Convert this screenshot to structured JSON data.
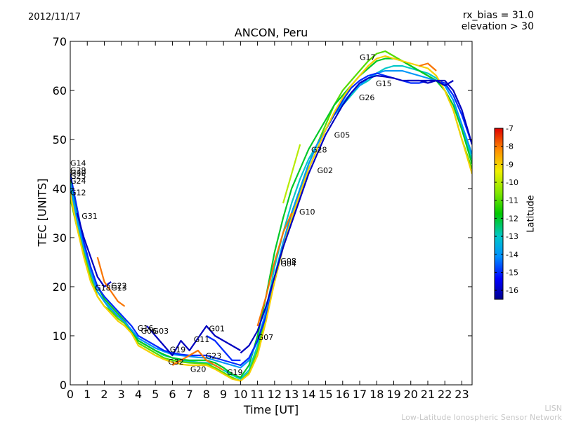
{
  "chart_data": {
    "type": "line",
    "title": "ANCON, Peru",
    "date": "2012/11/17",
    "annotation_lines": [
      "rx_bias = 31.0",
      "elevation > 30"
    ],
    "xlabel": "Time [UT]",
    "ylabel": "TEC [UNITS]",
    "xlim": [
      0,
      23.6
    ],
    "ylim": [
      0,
      70
    ],
    "xticks": [
      0,
      1,
      2,
      3,
      4,
      5,
      6,
      7,
      8,
      9,
      10,
      11,
      12,
      13,
      14,
      15,
      16,
      17,
      18,
      19,
      20,
      21,
      22,
      23
    ],
    "yticks": [
      0,
      10,
      20,
      30,
      40,
      50,
      60,
      70
    ],
    "colorbar": {
      "label": "Latitude",
      "range": [
        -16.5,
        -7
      ],
      "ticks": [
        -7,
        -8,
        -9,
        -10,
        -11,
        -12,
        -13,
        -14,
        -15,
        -16
      ]
    },
    "series": [
      {
        "name": "lat-13-a",
        "lat": -13,
        "x": [
          0,
          0.4,
          0.8,
          1.2,
          1.6,
          2.0,
          2.4,
          2.8,
          3.2,
          3.6,
          4.0,
          4.5,
          5.0,
          5.5,
          6.0,
          6.5,
          7.0,
          7.5,
          8.0,
          8.5,
          9.0,
          9.5,
          10.0,
          10.5,
          11.0,
          11.5,
          12.0,
          12.5,
          13.0,
          13.5,
          14.0,
          14.5,
          15.0,
          15.5,
          16.0,
          16.5,
          17.0,
          17.5,
          18.0,
          18.5,
          19.0,
          19.5,
          20.0,
          20.5,
          21.0,
          21.5,
          22.0,
          22.5,
          23.0,
          23.6
        ],
        "y": [
          40,
          33,
          28,
          23,
          19,
          17,
          15,
          14,
          13,
          11,
          9,
          8,
          7,
          6,
          5.5,
          5,
          4.8,
          4.6,
          4.5,
          4,
          3,
          2,
          1.2,
          3,
          8,
          15,
          24,
          31,
          37,
          42,
          46,
          49,
          52,
          55,
          57,
          59,
          61,
          62,
          63.5,
          64.5,
          65,
          65,
          64.5,
          64,
          63.5,
          62.5,
          61,
          58,
          53,
          46
        ]
      },
      {
        "name": "lat-11-a",
        "lat": -11,
        "x": [
          0,
          0.4,
          0.8,
          1.2,
          1.6,
          2.0,
          2.4,
          2.8,
          3.2,
          3.6,
          4.0,
          4.5,
          5.0,
          5.5,
          6.0,
          6.5,
          7.0,
          7.5,
          8.0,
          8.5,
          9.0,
          9.5,
          10.0,
          10.5,
          11.0,
          11.5,
          12.0,
          12.5,
          13.0,
          13.5,
          14.0,
          14.5,
          15.0,
          15.5,
          16.0,
          16.5,
          17.0,
          17.5,
          18.0,
          18.5,
          19.0,
          19.5,
          20.0,
          20.5,
          21.0,
          21.5,
          22.0,
          22.5,
          23.0,
          23.6
        ],
        "y": [
          38,
          32,
          27,
          22,
          18,
          16,
          15,
          13.5,
          12.5,
          10.5,
          8.5,
          7.5,
          6.5,
          5.5,
          5,
          4.7,
          4.5,
          4.4,
          4.3,
          3.5,
          2.5,
          1.5,
          0.8,
          2.5,
          7,
          14,
          22,
          29,
          35,
          40,
          45,
          49,
          53,
          57,
          60,
          62,
          64,
          66,
          67.5,
          68,
          67,
          66,
          65,
          64,
          63,
          62,
          60,
          56,
          50,
          44
        ]
      },
      {
        "name": "lat-12-a",
        "lat": -12,
        "x": [
          0,
          0.4,
          0.8,
          1.2,
          1.6,
          2.0,
          2.4,
          2.8,
          3.2,
          3.6,
          4.0,
          4.5,
          5.0,
          5.5,
          6.0,
          6.5,
          7.0,
          7.5,
          8.0,
          8.5,
          9.0,
          9.5,
          10.0,
          10.5,
          11.0,
          11.5,
          12.0,
          12.5,
          13.0,
          13.5,
          14.0,
          14.5,
          15.0,
          15.5,
          16.0,
          16.5,
          17.0,
          17.5,
          18.0,
          18.5,
          19.0,
          19.5,
          20.0,
          20.5,
          21.0,
          21.5,
          22.0,
          22.5,
          23.0,
          23.6
        ],
        "y": [
          42,
          35,
          29,
          24,
          20,
          17.5,
          16,
          14.5,
          13,
          11,
          9,
          8,
          7,
          6.2,
          5.5,
          5.2,
          5,
          5,
          5,
          4.5,
          3.5,
          2.2,
          1.5,
          4,
          10,
          18,
          27,
          34,
          40,
          44,
          48,
          51,
          54,
          57,
          59,
          61,
          63,
          64.5,
          66,
          66.5,
          66.5,
          66,
          65,
          64,
          63,
          62,
          60,
          57,
          52,
          45
        ]
      },
      {
        "name": "lat-14-a",
        "lat": -14,
        "x": [
          0,
          0.4,
          0.8,
          1.2,
          1.6,
          2.0,
          2.4,
          2.8,
          3.2,
          3.6,
          4.0,
          4.5,
          5.0,
          5.5,
          6.0,
          6.5,
          7.0,
          7.5,
          8.0,
          8.5,
          9.0,
          9.5,
          10.0,
          10.5,
          11.0,
          11.5,
          12.0,
          12.5,
          13.0,
          13.5,
          14.0,
          14.5,
          15.0,
          15.5,
          16.0,
          16.5,
          17.0,
          17.5,
          18.0,
          18.5,
          19.0,
          19.5,
          20.0,
          20.5,
          21.0,
          21.5,
          22.0,
          22.5,
          23.0,
          23.6
        ],
        "y": [
          41,
          34,
          28,
          23,
          19,
          17,
          15.5,
          14,
          12.8,
          11.2,
          9.5,
          8.5,
          7.5,
          6.8,
          6.2,
          6,
          5.8,
          5.6,
          5.5,
          5,
          4.5,
          4,
          3.5,
          5,
          9,
          15,
          22,
          29,
          35,
          40,
          45,
          49,
          52,
          55,
          57.5,
          59.5,
          61,
          62.5,
          63.5,
          64,
          64,
          64,
          63.5,
          63,
          62.5,
          62,
          61,
          58,
          53,
          47
        ]
      },
      {
        "name": "lat-15-a",
        "lat": -15,
        "x": [
          0,
          0.4,
          0.8,
          1.2,
          1.6,
          2.0,
          2.4,
          2.8,
          3.2,
          3.6,
          4.0,
          4.5,
          5.0,
          5.5,
          6.0,
          6.5,
          7.0,
          7.5,
          8.0,
          8.5,
          9.0,
          9.5,
          10.0,
          10.5,
          11.0,
          11.5,
          12.0,
          12.5,
          13.0,
          13.5,
          14.0,
          14.5,
          15.0,
          15.5,
          16.0,
          16.5,
          17.0,
          17.5,
          18.0,
          18.5,
          19.0,
          19.5,
          20.0,
          20.5,
          21.0,
          21.5,
          22.0,
          22.5,
          23.0,
          23.6
        ],
        "y": [
          43,
          36,
          29,
          24,
          20,
          18,
          16.5,
          15,
          13.5,
          12,
          10,
          9,
          8,
          7,
          6.5,
          6.2,
          6,
          6,
          6,
          5.5,
          5,
          4.5,
          4,
          5.5,
          9,
          14,
          21,
          28,
          34,
          39,
          44,
          48,
          52,
          55,
          58,
          60.5,
          62,
          63,
          63.5,
          63,
          62.5,
          62,
          61.5,
          61.5,
          62,
          62,
          61.5,
          59,
          55,
          49
        ]
      },
      {
        "name": "lat-9-a",
        "lat": -9,
        "x": [
          0,
          0.4,
          0.8,
          1.2,
          1.6,
          2.0,
          2.4,
          2.8,
          3.2,
          3.6,
          4.0,
          4.5,
          5.0,
          5.5,
          6.0,
          6.5,
          7.0,
          7.5,
          8.0,
          8.5,
          9.0,
          9.5,
          10.0,
          10.5,
          11.0,
          11.5,
          12.0,
          12.5,
          13.0,
          13.5,
          14.0,
          14.5,
          15.0,
          15.5,
          16.0,
          16.5,
          17.0,
          17.5,
          18.0,
          18.5,
          19.0,
          19.5,
          20.0,
          20.5,
          21.0,
          21.5,
          22.0,
          22.5,
          23.0,
          23.6
        ],
        "y": [
          39,
          32,
          26,
          21,
          18,
          16,
          14.5,
          13,
          12,
          10.5,
          8,
          7,
          6,
          5.2,
          4.6,
          4.2,
          4,
          4,
          4,
          3.2,
          2.2,
          1.2,
          0.8,
          2.2,
          6,
          13,
          21,
          28,
          34,
          39,
          44,
          48,
          52,
          55.5,
          58.5,
          61,
          63,
          65,
          66.5,
          67,
          66.5,
          66,
          65.5,
          65,
          64.5,
          63,
          60,
          56,
          50,
          43
        ]
      },
      {
        "name": "lat-16-a",
        "lat": -16,
        "x": [
          10.0,
          10.5,
          11.0,
          11.5,
          12.0,
          12.5,
          13.0,
          13.5,
          14.0,
          14.5,
          15.0,
          15.5,
          16.0,
          16.5,
          17.0,
          17.5,
          18.0,
          18.5,
          19.0,
          19.5,
          20.0,
          20.5,
          21.0,
          21.5,
          22.0,
          22.5,
          23.0,
          23.6
        ],
        "y": [
          6.5,
          8,
          11,
          16,
          22,
          28,
          33,
          38,
          43,
          47,
          51,
          54,
          57,
          59.5,
          61.5,
          62.5,
          63,
          62.8,
          62.5,
          62,
          62,
          62,
          62,
          62,
          62,
          60,
          56,
          49
        ]
      },
      {
        "name": "lat-8-a",
        "lat": -8,
        "x": [
          11.0,
          11.5,
          12.0,
          12.5,
          13.0
        ],
        "y": [
          12,
          18,
          25,
          31,
          35
        ]
      },
      {
        "name": "lat-10-a",
        "lat": -10,
        "x": [
          12.5,
          13.0,
          13.5
        ],
        "y": [
          37,
          43,
          49
        ]
      },
      {
        "name": "lat-16-b",
        "lat": -16,
        "x": [
          0.4,
          0.8,
          1.2,
          1.6,
          2.0,
          2.4
        ],
        "y": [
          35,
          30,
          26,
          22,
          20,
          21
        ]
      },
      {
        "name": "lat-8-b",
        "lat": -8,
        "x": [
          1.6,
          2.0,
          2.4,
          2.8,
          3.2
        ],
        "y": [
          26,
          21,
          19,
          17,
          16
        ]
      },
      {
        "name": "lat-16-c",
        "lat": -16,
        "x": [
          4.5,
          5.0,
          5.5,
          6.0,
          6.5,
          7.0,
          8.0,
          8.5,
          9.0,
          9.5,
          10.0
        ],
        "y": [
          12,
          10,
          8,
          6,
          9,
          7,
          12,
          10,
          9,
          8,
          7
        ]
      },
      {
        "name": "lat-15-b",
        "lat": -15,
        "x": [
          8.0,
          8.5,
          9.0,
          9.5,
          10.0
        ],
        "y": [
          10,
          9,
          7,
          5,
          5
        ]
      },
      {
        "name": "lat-8-c",
        "lat": -8,
        "x": [
          6.0,
          6.5,
          7.0,
          7.5,
          8.0,
          8.5,
          9.0
        ],
        "y": [
          4,
          5,
          6,
          7,
          5,
          4,
          3
        ]
      },
      {
        "name": "lat-16-d",
        "lat": -16,
        "x": [
          19.8,
          20.5,
          21.0,
          21.5,
          22.0,
          22.5
        ],
        "y": [
          62,
          62,
          61.5,
          62,
          61,
          62
        ]
      },
      {
        "name": "lat-8-d",
        "lat": -8,
        "x": [
          20.5,
          21.0,
          21.5
        ],
        "y": [
          65,
          65.5,
          64
        ]
      }
    ],
    "satellite_labels": [
      {
        "text": "G14",
        "x": 0.0,
        "y": 45.2
      },
      {
        "text": "G29",
        "x": 0.0,
        "y": 43.8
      },
      {
        "text": "G30",
        "x": 0.0,
        "y": 43.2
      },
      {
        "text": "G25",
        "x": 0.0,
        "y": 42.6
      },
      {
        "text": "G24",
        "x": 0.0,
        "y": 41.6
      },
      {
        "text": "G12",
        "x": 0.0,
        "y": 39.2
      },
      {
        "text": "G31",
        "x": 0.67,
        "y": 34.4
      },
      {
        "text": "G18",
        "x": 1.45,
        "y": 19.8
      },
      {
        "text": "G22",
        "x": 2.4,
        "y": 20.2
      },
      {
        "text": "G13",
        "x": 2.4,
        "y": 19.8
      },
      {
        "text": "G16",
        "x": 3.95,
        "y": 11.6
      },
      {
        "text": "G06",
        "x": 4.15,
        "y": 11.0
      },
      {
        "text": "G03",
        "x": 4.85,
        "y": 11.0
      },
      {
        "text": "G11",
        "x": 7.25,
        "y": 9.3
      },
      {
        "text": "G01",
        "x": 8.15,
        "y": 11.5
      },
      {
        "text": "G19",
        "x": 5.85,
        "y": 7.2
      },
      {
        "text": "G23",
        "x": 7.95,
        "y": 5.9
      },
      {
        "text": "G32",
        "x": 5.75,
        "y": 4.7
      },
      {
        "text": "G20",
        "x": 7.05,
        "y": 3.2
      },
      {
        "text": "G19",
        "x": 9.2,
        "y": 2.6
      },
      {
        "text": "G07",
        "x": 11.0,
        "y": 9.7
      },
      {
        "text": "G08",
        "x": 12.35,
        "y": 25.3
      },
      {
        "text": "G04",
        "x": 12.35,
        "y": 24.7
      },
      {
        "text": "G10",
        "x": 13.45,
        "y": 35.3
      },
      {
        "text": "G28",
        "x": 14.15,
        "y": 47.9
      },
      {
        "text": "G02",
        "x": 14.5,
        "y": 43.7
      },
      {
        "text": "G05",
        "x": 15.5,
        "y": 50.9
      },
      {
        "text": "G26",
        "x": 16.95,
        "y": 58.6
      },
      {
        "text": "G15",
        "x": 17.95,
        "y": 61.4
      },
      {
        "text": "G17",
        "x": 17.0,
        "y": 66.8
      }
    ]
  },
  "watermark": {
    "line1": "LISN",
    "line2": "Low-Latitude Ionospheric Sensor Network"
  }
}
